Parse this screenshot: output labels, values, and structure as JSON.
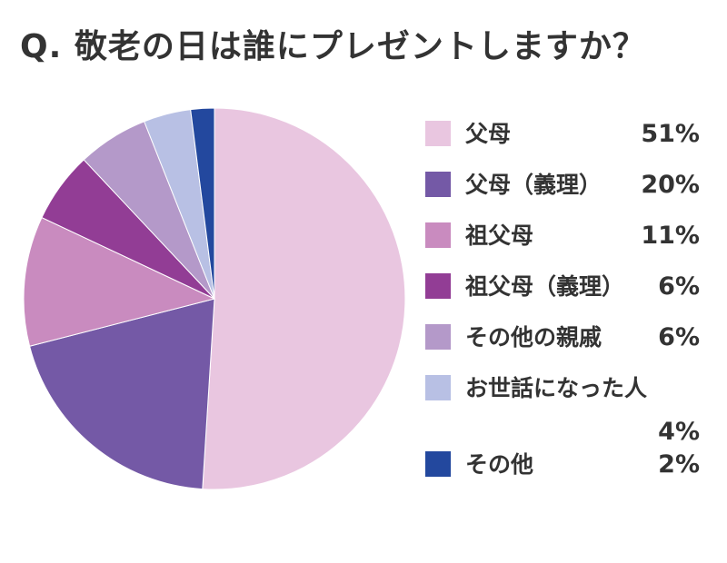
{
  "title": "Q. 敬老の日は誰にプレゼントしますか？",
  "chart_data": {
    "type": "pie",
    "title": "Q. 敬老の日は誰にプレゼントしますか？",
    "legend_position": "right",
    "slices": [
      {
        "label": "父母",
        "value": 51,
        "display": "51%",
        "color": "#e9c6e0"
      },
      {
        "label": "父母（義理）",
        "value": 20,
        "display": "20%",
        "color": "#7459a6"
      },
      {
        "label": "祖父母",
        "value": 11,
        "display": "11%",
        "color": "#c98bbf"
      },
      {
        "label": "祖父母（義理）",
        "value": 6,
        "display": "6%",
        "color": "#923d95"
      },
      {
        "label": "その他の親戚",
        "value": 6,
        "display": "6%",
        "color": "#b499c9"
      },
      {
        "label": "お世話になった人",
        "value": 4,
        "display": "4%",
        "color": "#b8c0e4"
      },
      {
        "label": "その他",
        "value": 2,
        "display": "2%",
        "color": "#23489e"
      }
    ]
  }
}
